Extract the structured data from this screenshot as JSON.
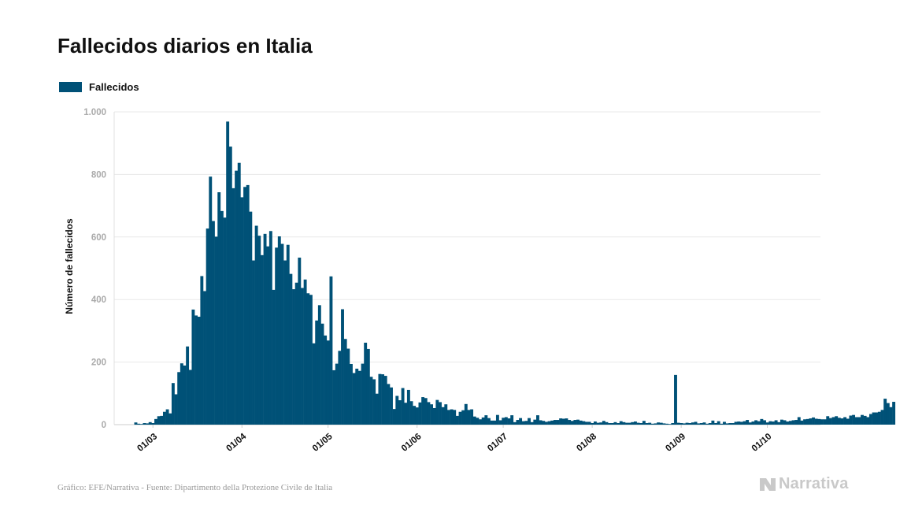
{
  "chart_data": {
    "type": "bar",
    "title": "Fallecidos diarios en Italia",
    "ylabel": "Número de fallecidos",
    "xlabel": "",
    "ylim": [
      0,
      1000
    ],
    "yticks": [
      0,
      200,
      400,
      600,
      800,
      1000
    ],
    "ytick_labels": [
      "0",
      "200",
      "400",
      "600",
      "800",
      "1.000"
    ],
    "grid": true,
    "legend_position": "top-left",
    "x_start": "2020-02-17",
    "x_end": "2020-10-20",
    "xtick_labels": [
      {
        "date": "2020-03-01",
        "label": "01/03"
      },
      {
        "date": "2020-04-01",
        "label": "01/04"
      },
      {
        "date": "2020-05-01",
        "label": "01/05"
      },
      {
        "date": "2020-06-01",
        "label": "01/06"
      },
      {
        "date": "2020-07-01",
        "label": "01/07"
      },
      {
        "date": "2020-08-01",
        "label": "01/08"
      },
      {
        "date": "2020-09-01",
        "label": "01/09"
      },
      {
        "date": "2020-10-01",
        "label": "01/10"
      }
    ],
    "series": [
      {
        "name": "Fallecidos",
        "color": "#005177",
        "start_date": "2020-02-24",
        "values": [
          7,
          3,
          2,
          5,
          4,
          8,
          5,
          18,
          27,
          28,
          41,
          49,
          36,
          133,
          97,
          168,
          196,
          189,
          250,
          175,
          368,
          349,
          345,
          475,
          427,
          627,
          793,
          651,
          601,
          743,
          683,
          662,
          969,
          889,
          756,
          812,
          837,
          727,
          760,
          766,
          681,
          525,
          636,
          604,
          542,
          610,
          570,
          619,
          431,
          566,
          602,
          578,
          525,
          575,
          482,
          433,
          454,
          534,
          437,
          464,
          420,
          415,
          260,
          333,
          382,
          323,
          285,
          269,
          474,
          174,
          195,
          236,
          369,
          274,
          243,
          194,
          165,
          179,
          172,
          195,
          262,
          242,
          153,
          145,
          99,
          162,
          161,
          156,
          130,
          119,
          50,
          92,
          78,
          117,
          70,
          111,
          75,
          60,
          55,
          71,
          88,
          85,
          72,
          65,
          53,
          79,
          72,
          56,
          65,
          47,
          49,
          47,
          28,
          41,
          46,
          66,
          47,
          49,
          26,
          22,
          17,
          23,
          30,
          21,
          13,
          13,
          31,
          14,
          22,
          24,
          20,
          30,
          8,
          15,
          21,
          11,
          12,
          21,
          8,
          16,
          30,
          14,
          12,
          9,
          11,
          13,
          15,
          15,
          20,
          19,
          20,
          15,
          12,
          15,
          16,
          13,
          11,
          9,
          9,
          5,
          10,
          6,
          7,
          12,
          8,
          5,
          5,
          8,
          5,
          11,
          8,
          6,
          6,
          8,
          10,
          6,
          5,
          12,
          5,
          6,
          3,
          4,
          7,
          6,
          4,
          3,
          2,
          5,
          159,
          6,
          5,
          4,
          6,
          5,
          7,
          9,
          4,
          5,
          7,
          3,
          5,
          13,
          5,
          11,
          3,
          9,
          4,
          5,
          5,
          9,
          10,
          9,
          11,
          15,
          7,
          10,
          14,
          11,
          18,
          14,
          7,
          11,
          10,
          14,
          8,
          16,
          14,
          10,
          12,
          14,
          15,
          24,
          13,
          17,
          18,
          20,
          23,
          19,
          18,
          17,
          17,
          27,
          21,
          24,
          27,
          22,
          20,
          24,
          19,
          29,
          31,
          24,
          24,
          31,
          28,
          24,
          34,
          39,
          39,
          41,
          47,
          83,
          69,
          56,
          73
        ]
      }
    ]
  },
  "legend": {
    "label": "Fallecidos"
  },
  "footer": {
    "source": "Gráfico: EFE/Narrativa - Fuente: Dipartimento della Protezione Civile de Italia",
    "brand": "Narrativa"
  },
  "colors": {
    "bar": "#005177",
    "grid": "#e8e8e8",
    "axis_tick": "#aaaaaa"
  }
}
